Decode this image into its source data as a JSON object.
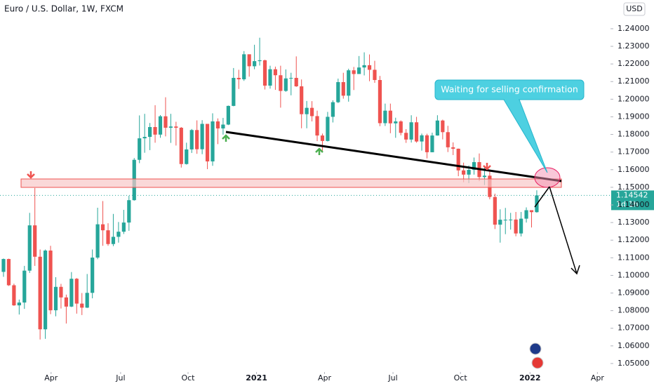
{
  "chart_data": {
    "type": "candlestick",
    "title": "Euro / U.S. Dollar, 1W, FXCM",
    "currency": "USD",
    "up_color": "#26a69a",
    "down_color": "#ef5350",
    "open": [
      1.102,
      1.1093,
      1.0944,
      1.083,
      1.0846,
      1.1027,
      1.1284,
      1.1106,
      1.0694,
      1.1141,
      1.0802,
      1.0935,
      1.0875,
      1.0823,
      1.0981,
      1.084,
      1.0817,
      1.0901,
      1.1101,
      1.129,
      1.1256,
      1.1178,
      1.1219,
      1.1248,
      1.13,
      1.1427,
      1.1656,
      1.1778,
      1.1786,
      1.1842,
      1.1799,
      1.1903,
      1.1838,
      1.1845,
      1.1838,
      1.1632,
      1.1715,
      1.1825,
      1.1716,
      1.186,
      1.1647,
      1.1874,
      1.1834,
      1.1856,
      1.1962,
      1.2121,
      1.2113,
      1.2255,
      1.2187,
      1.2216,
      1.2221,
      1.2077,
      1.217,
      1.2136,
      1.2047,
      1.2118,
      1.2121,
      1.2073,
      1.1915,
      1.1951,
      1.1904,
      1.1794,
      1.1763,
      1.19,
      1.1983,
      1.2097,
      1.202,
      1.2164,
      1.2143,
      1.218,
      1.2193,
      1.2167,
      1.2109,
      1.1864,
      1.1935,
      1.1863,
      1.1874,
      1.1809,
      1.1771,
      1.1869,
      1.176,
      1.1795,
      1.1699,
      1.1794,
      1.1879,
      1.1813,
      1.1727,
      1.1719,
      1.1596,
      1.1572,
      1.1599,
      1.1643,
      1.1558,
      1.1566,
      1.1445,
      1.1288,
      1.1316,
      1.1316,
      1.1317,
      1.1238,
      1.1322,
      1.137,
      1.1359
    ],
    "high": [
      1.1096,
      1.1095,
      1.0953,
      1.0863,
      1.1054,
      1.1355,
      1.1496,
      1.1147,
      1.1147,
      1.1168,
      1.099,
      1.0952,
      1.0891,
      1.1019,
      1.0985,
      1.09,
      1.1008,
      1.1147,
      1.1384,
      1.1422,
      1.1296,
      1.1349,
      1.1303,
      1.1372,
      1.1452,
      1.1666,
      1.1908,
      1.1917,
      1.1865,
      1.1966,
      1.191,
      1.2011,
      1.1917,
      1.1872,
      1.1842,
      1.1753,
      1.1831,
      1.188,
      1.1881,
      1.186,
      1.192,
      1.1891,
      1.1894,
      1.1964,
      1.2177,
      1.2167,
      1.2273,
      1.225,
      1.2309,
      1.2349,
      1.2224,
      1.219,
      1.2185,
      1.219,
      1.2169,
      1.215,
      1.2243,
      1.2112,
      1.199,
      1.1989,
      1.1935,
      1.1805,
      1.1928,
      1.1994,
      1.2117,
      1.215,
      1.2173,
      1.2183,
      1.2245,
      1.2266,
      1.2254,
      1.2218,
      1.2132,
      1.1975,
      1.1975,
      1.1895,
      1.188,
      1.183,
      1.1909,
      1.19,
      1.1805,
      1.1804,
      1.181,
      1.1909,
      1.1884,
      1.1849,
      1.1755,
      1.172,
      1.164,
      1.1624,
      1.1669,
      1.1692,
      1.1616,
      1.159,
      1.1464,
      1.1375,
      1.1383,
      1.1355,
      1.136,
      1.136,
      1.1386,
      1.1369,
      1.1483
    ],
    "low": [
      1.0992,
      1.094,
      1.0827,
      1.0778,
      1.081,
      1.1014,
      1.1054,
      1.0636,
      1.064,
      1.078,
      1.0768,
      1.0812,
      1.0727,
      1.082,
      1.0783,
      1.0775,
      1.0815,
      1.087,
      1.1092,
      1.1168,
      1.1168,
      1.1166,
      1.1186,
      1.1235,
      1.1253,
      1.1424,
      1.1637,
      1.1696,
      1.1711,
      1.1753,
      1.1781,
      1.1789,
      1.1752,
      1.1737,
      1.1612,
      1.1629,
      1.1695,
      1.169,
      1.1688,
      1.1603,
      1.1622,
      1.1745,
      1.1799,
      1.1853,
      1.196,
      1.2058,
      1.2104,
      1.2128,
      1.217,
      1.2191,
      1.2055,
      1.206,
      1.2053,
      1.1952,
      1.2042,
      1.2022,
      1.207,
      1.1835,
      1.1835,
      1.1874,
      1.1762,
      1.1704,
      1.176,
      1.1868,
      1.1978,
      1.2003,
      1.1986,
      1.2052,
      1.216,
      1.2135,
      1.2102,
      1.2093,
      1.1847,
      1.1848,
      1.1807,
      1.1781,
      1.1795,
      1.1752,
      1.1754,
      1.1753,
      1.1708,
      1.1664,
      1.1699,
      1.1793,
      1.1772,
      1.17,
      1.1683,
      1.1563,
      1.1529,
      1.1524,
      1.1572,
      1.1535,
      1.1513,
      1.1432,
      1.1263,
      1.1186,
      1.1234,
      1.126,
      1.1222,
      1.1221,
      1.13,
      1.1272,
      1.1356
    ],
    "close": [
      1.1093,
      1.0944,
      1.083,
      1.0846,
      1.1027,
      1.1284,
      1.1106,
      1.0694,
      1.1141,
      1.0802,
      1.0935,
      1.0875,
      1.0823,
      1.0981,
      1.084,
      1.0817,
      1.0901,
      1.1101,
      1.129,
      1.1256,
      1.1178,
      1.1219,
      1.1248,
      1.13,
      1.1427,
      1.1656,
      1.1778,
      1.1786,
      1.1842,
      1.1799,
      1.1903,
      1.1838,
      1.1845,
      1.1838,
      1.1632,
      1.1715,
      1.1825,
      1.1716,
      1.186,
      1.1647,
      1.1874,
      1.1834,
      1.1856,
      1.1962,
      1.2121,
      1.2113,
      1.2255,
      1.2187,
      1.2216,
      1.2221,
      1.2077,
      1.217,
      1.2136,
      1.2047,
      1.2118,
      1.2121,
      1.2073,
      1.1915,
      1.1951,
      1.1904,
      1.1794,
      1.1763,
      1.19,
      1.1983,
      1.2097,
      1.202,
      1.2164,
      1.2143,
      1.218,
      1.2193,
      1.2167,
      1.2109,
      1.1864,
      1.1935,
      1.1863,
      1.1874,
      1.1809,
      1.1771,
      1.1869,
      1.176,
      1.1795,
      1.1699,
      1.1794,
      1.1879,
      1.1813,
      1.1727,
      1.1719,
      1.1596,
      1.1572,
      1.1599,
      1.1643,
      1.1558,
      1.1566,
      1.1445,
      1.1288,
      1.1316,
      1.1316,
      1.1317,
      1.1238,
      1.1322,
      1.137,
      1.1359,
      1.1454
    ],
    "last_price": 1.14542,
    "countdown": "1d 1h",
    "annotation": "Waiting for selling confirmation",
    "xlim": [
      -0.67,
      116.1
    ],
    "xticks": [
      {
        "value": 9.1,
        "label": "Apr"
      },
      {
        "value": 22.4,
        "label": "Jul"
      },
      {
        "value": 35.3,
        "label": "Oct"
      },
      {
        "value": 48.4,
        "label": "2021"
      },
      {
        "value": 61.4,
        "label": "Apr"
      },
      {
        "value": 74.5,
        "label": "Jul"
      },
      {
        "value": 87.4,
        "label": "Oct"
      },
      {
        "value": 100.7,
        "label": "2022"
      },
      {
        "value": 113.6,
        "label": "Apr"
      }
    ],
    "ylim": [
      1.0452,
      1.2563
    ],
    "yticks": [
      {
        "value": 1.05,
        "label": "1.05000"
      },
      {
        "value": 1.06,
        "label": "1.06000"
      },
      {
        "value": 1.07,
        "label": "1.07000"
      },
      {
        "value": 1.08,
        "label": "1.08000"
      },
      {
        "value": 1.09,
        "label": "1.09000"
      },
      {
        "value": 1.1,
        "label": "1.10000"
      },
      {
        "value": 1.11,
        "label": "1.11000"
      },
      {
        "value": 1.12,
        "label": "1.12000"
      },
      {
        "value": 1.13,
        "label": "1.13000"
      },
      {
        "value": 1.14,
        "label": "1.14000"
      },
      {
        "value": 1.15,
        "label": "1.15000"
      },
      {
        "value": 1.16,
        "label": "1.16000"
      },
      {
        "value": 1.17,
        "label": "1.17000"
      },
      {
        "value": 1.18,
        "label": "1.18000"
      },
      {
        "value": 1.19,
        "label": "1.19000"
      },
      {
        "value": 1.2,
        "label": "1.20000"
      },
      {
        "value": 1.21,
        "label": "1.21000"
      },
      {
        "value": 1.22,
        "label": "1.22000"
      },
      {
        "value": 1.23,
        "label": "1.23000"
      },
      {
        "value": 1.24,
        "label": "1.24000"
      }
    ]
  }
}
